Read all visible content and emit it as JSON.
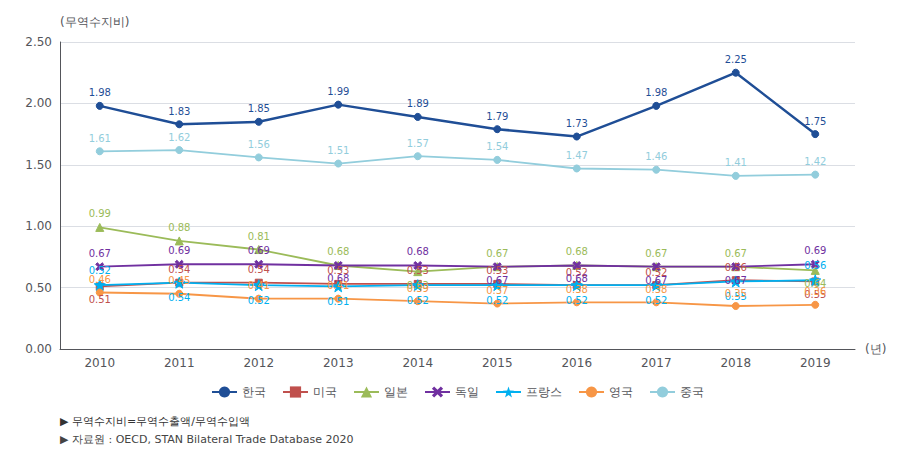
{
  "chart_data": {
    "type": "line",
    "categories": [
      "2010",
      "2011",
      "2012",
      "2013",
      "2014",
      "2015",
      "2016",
      "2017",
      "2018",
      "2019"
    ],
    "series": [
      {
        "name": "한국",
        "color": "#1f4e96",
        "marker": "circle",
        "values": [
          1.98,
          1.83,
          1.85,
          1.99,
          1.89,
          1.79,
          1.73,
          1.98,
          2.25,
          1.75
        ]
      },
      {
        "name": "미국",
        "color": "#c0504d",
        "marker": "square",
        "values": [
          0.51,
          0.54,
          0.54,
          0.53,
          0.53,
          0.53,
          0.52,
          0.52,
          0.56,
          0.55
        ]
      },
      {
        "name": "일본",
        "color": "#9bbb59",
        "marker": "triangle",
        "values": [
          0.99,
          0.88,
          0.81,
          0.68,
          0.63,
          0.67,
          0.68,
          0.67,
          0.67,
          0.64
        ]
      },
      {
        "name": "독일",
        "color": "#7030a0",
        "marker": "x",
        "values": [
          0.67,
          0.69,
          0.69,
          0.68,
          0.68,
          0.67,
          0.68,
          0.67,
          0.67,
          0.69
        ]
      },
      {
        "name": "프랑스",
        "color": "#00b0f0",
        "marker": "star",
        "values": [
          0.52,
          0.54,
          0.52,
          0.51,
          0.52,
          0.52,
          0.52,
          0.52,
          0.55,
          0.56
        ]
      },
      {
        "name": "영국",
        "color": "#f79646",
        "marker": "circle",
        "values": [
          0.46,
          0.45,
          0.41,
          0.41,
          0.39,
          0.37,
          0.38,
          0.38,
          0.35,
          0.36
        ]
      },
      {
        "name": "중국",
        "color": "#92cddc",
        "marker": "circle",
        "values": [
          1.61,
          1.62,
          1.56,
          1.51,
          1.57,
          1.54,
          1.47,
          1.46,
          1.41,
          1.42
        ]
      }
    ],
    "xlabel": "(년)",
    "ylabel": "(무역수지비)",
    "ylim": [
      0.0,
      2.5
    ],
    "yticks": [
      {
        "value": 0,
        "label": "0.00"
      },
      {
        "value": 0.5,
        "label": "0.50"
      },
      {
        "value": 1,
        "label": "1.00"
      },
      {
        "value": 1.5,
        "label": "1.50"
      },
      {
        "value": 2,
        "label": "2.00"
      },
      {
        "value": 2.5,
        "label": "2.50"
      }
    ],
    "annotations": [
      "▶ 무역수지비=무역수출액/무역수입액",
      "▶ 자료원 : OECD, STAN Bilateral Trade Database 2020"
    ],
    "grid": true,
    "legend": "bottom",
    "data_labels": true,
    "line_style": "solid"
  }
}
